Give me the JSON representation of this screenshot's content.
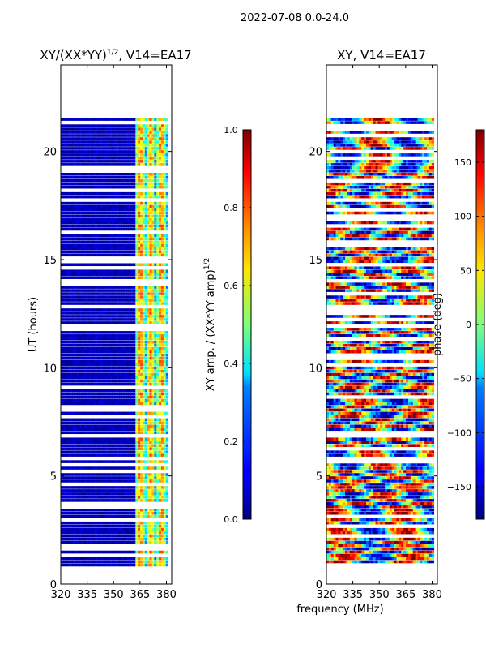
{
  "suptitle": "2022-07-08 0.0-24.0",
  "xlabel_shared": "frequency (MHz)",
  "chart_data": [
    {
      "type": "heatmap",
      "title_main": "XY/(XX*YY)",
      "title_sup": "1/2",
      "title_tail": ", V14=EA17",
      "xlabel": "frequency (MHz)",
      "ylabel": "UT (hours)",
      "xlim": [
        320,
        383
      ],
      "ylim": [
        0,
        24
      ],
      "xticks": [
        320,
        335,
        350,
        365,
        380
      ],
      "yticks": [
        0,
        5,
        10,
        15,
        20
      ],
      "data_time_range": [
        0.8,
        21.7
      ],
      "colorbar": {
        "label_main": "XY amp. / (XX*YY amp)",
        "label_sup": "1/2",
        "range": [
          0.0,
          1.0
        ],
        "ticks": [
          0.0,
          0.2,
          0.4,
          0.6,
          0.8,
          1.0
        ],
        "tick_labels": [
          "0.0",
          "0.2",
          "0.4",
          "0.6",
          "0.8",
          "1.0"
        ]
      }
    },
    {
      "type": "heatmap",
      "title_main": "XY, V14=EA17",
      "title_sup": "",
      "title_tail": "",
      "xlabel": "frequency (MHz)",
      "ylabel": "",
      "xlim": [
        320,
        383
      ],
      "ylim": [
        0,
        24
      ],
      "xticks": [
        320,
        335,
        350,
        365,
        380
      ],
      "yticks": [
        0,
        5,
        10,
        15,
        20
      ],
      "data_time_range": [
        0.8,
        21.7
      ],
      "colorbar": {
        "label_main": "phase (deg)",
        "label_sup": "",
        "range": [
          -180,
          180
        ],
        "ticks": [
          -150,
          -100,
          -50,
          0,
          50,
          100,
          150
        ],
        "tick_labels": [
          "−150",
          "−100",
          "−50",
          "0",
          "50",
          "100",
          "150"
        ]
      }
    }
  ]
}
